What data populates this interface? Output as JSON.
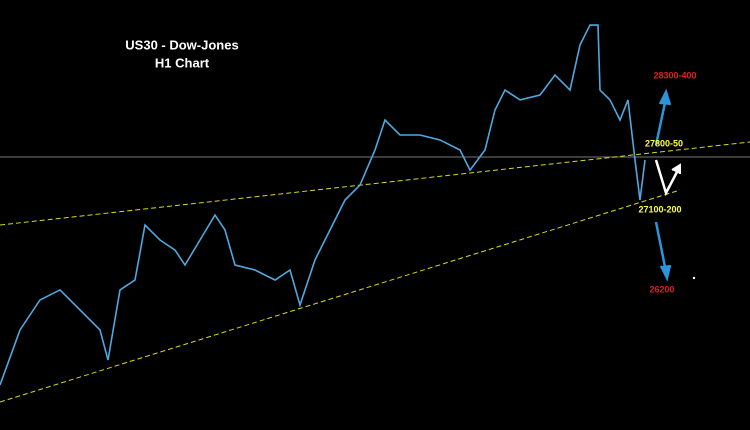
{
  "chart_data": {
    "type": "line",
    "title": "US30 - Dow-Jones",
    "subtitle": "H1 Chart",
    "x": [
      0,
      20,
      40,
      60,
      80,
      100,
      108,
      120,
      135,
      145,
      160,
      175,
      185,
      200,
      215,
      225,
      235,
      255,
      275,
      290,
      300,
      315,
      330,
      345,
      360,
      375,
      385,
      400,
      420,
      440,
      460,
      470,
      485,
      495,
      505,
      520,
      540,
      555,
      570,
      580,
      590,
      598,
      600,
      610,
      620,
      628,
      635,
      640,
      645
    ],
    "series": [
      {
        "name": "US30",
        "color": "#4fa8e0",
        "values": [
          26045,
          26468,
          26698,
          26775,
          26621,
          26468,
          26237,
          26775,
          26851,
          27273,
          27158,
          27081,
          26966,
          27158,
          27350,
          27235,
          26966,
          26928,
          26851,
          26928,
          26659,
          27005,
          27235,
          27465,
          27580,
          27849,
          28079,
          27964,
          27964,
          27926,
          27849,
          27695,
          27849,
          28156,
          28309,
          28233,
          28271,
          28424,
          28309,
          28655,
          28808,
          28808,
          28309,
          28233,
          28079,
          28233,
          27772,
          27465,
          27772
        ]
      }
    ],
    "xlim": [
      0,
      750
    ],
    "ylim": [
      25700,
      29000
    ],
    "annotations": [
      {
        "text": "28300-400",
        "color": "#e0201c"
      },
      {
        "text": "27800-50",
        "color": "#ffff40"
      },
      {
        "text": "27100-200",
        "color": "#ffff40"
      },
      {
        "text": "26200",
        "color": "#e0201c"
      }
    ]
  }
}
